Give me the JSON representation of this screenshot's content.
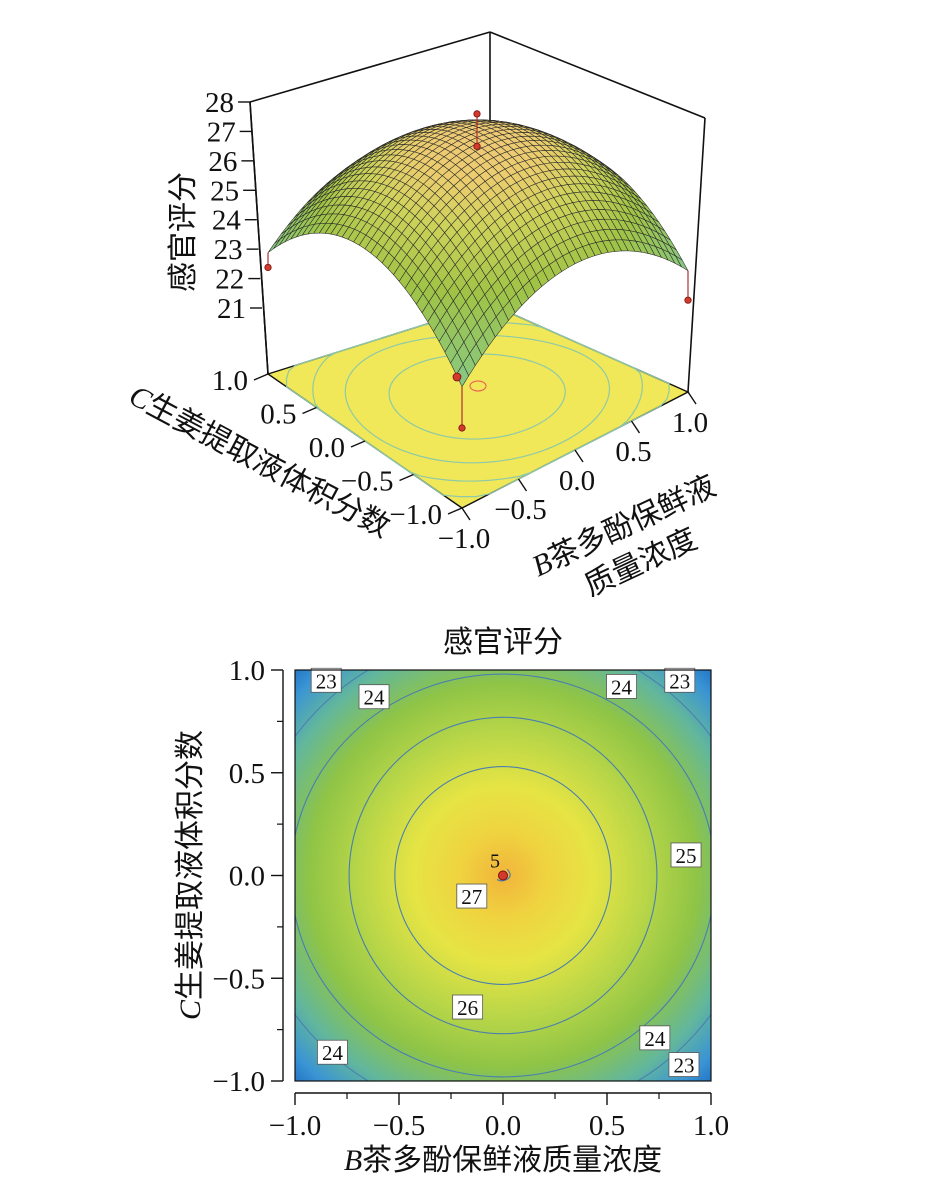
{
  "chart_data": [
    {
      "type": "surface",
      "zlabel": "感官评分",
      "xlabel_prefix": "B",
      "xlabel_line1": "茶多酚保鲜液",
      "xlabel_line2": "质量浓度",
      "ylabel_prefix": "C",
      "ylabel": "生姜提取液体积分数",
      "x_range": [
        -1.0,
        1.0
      ],
      "y_range": [
        -1.0,
        1.0
      ],
      "z_range": [
        21,
        28
      ],
      "x_ticks": [
        "−1.0",
        "−0.5",
        "0.0",
        "0.5",
        "1.0"
      ],
      "y_ticks": [
        "−1.0",
        "−0.5",
        "0.0",
        "0.5",
        "1.0"
      ],
      "z_ticks": [
        "21",
        "22",
        "23",
        "24",
        "25",
        "26",
        "27",
        "28"
      ],
      "model": {
        "intercept": 27.0,
        "x2": -2.2,
        "y2": -2.4,
        "xy": 0.0
      },
      "design_points": [
        {
          "x": 0.0,
          "y": 0.0,
          "z": 27.8
        },
        {
          "x": 0.0,
          "y": 0.0,
          "z": 26.7
        },
        {
          "x": -1.0,
          "y": 1.0,
          "z": 21.9
        },
        {
          "x": 1.0,
          "y": -1.0,
          "z": 21.4
        },
        {
          "x": -1.0,
          "y": -1.0,
          "z": 21.0
        }
      ]
    },
    {
      "type": "contour",
      "title": "感官评分",
      "xlabel_prefix": "B",
      "xlabel": "茶多酚保鲜液质量浓度",
      "ylabel_prefix": "C",
      "ylabel": "生姜提取液体积分数",
      "x_range": [
        -1.0,
        1.0
      ],
      "y_range": [
        -1.0,
        1.0
      ],
      "x_ticks": [
        "−1.0",
        "−0.5",
        "0.0",
        "0.5",
        "1.0"
      ],
      "y_ticks": [
        "−1.0",
        "−0.5",
        "0.0",
        "0.5",
        "1.0"
      ],
      "contour_levels": [
        23,
        24,
        25,
        26,
        27
      ],
      "contour_labels": [
        {
          "text": "23",
          "x": -0.85,
          "y": 0.95
        },
        {
          "text": "24",
          "x": -0.62,
          "y": 0.87
        },
        {
          "text": "24",
          "x": 0.57,
          "y": 0.92
        },
        {
          "text": "23",
          "x": 0.85,
          "y": 0.95
        },
        {
          "text": "25",
          "x": 0.88,
          "y": 0.1
        },
        {
          "text": "27",
          "x": -0.15,
          "y": -0.1
        },
        {
          "text": "26",
          "x": -0.17,
          "y": -0.64
        },
        {
          "text": "24",
          "x": -0.82,
          "y": -0.86
        },
        {
          "text": "24",
          "x": 0.73,
          "y": -0.79
        },
        {
          "text": "23",
          "x": 0.87,
          "y": -0.92
        }
      ],
      "center_point": {
        "x": 0.0,
        "y": 0.0,
        "label": "5"
      }
    }
  ]
}
